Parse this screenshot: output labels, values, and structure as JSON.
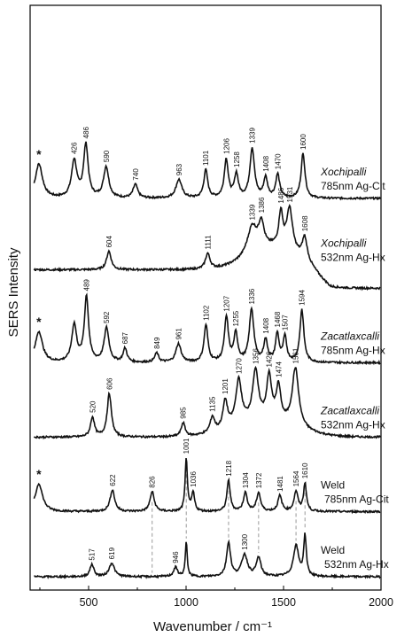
{
  "chart_data": {
    "type": "line",
    "title": "",
    "xlabel": "Wavenumber / cm⁻¹",
    "ylabel": "SERS Intensity",
    "xlim": [
      200,
      2000
    ],
    "xticks": [
      500,
      1000,
      1500,
      2000
    ],
    "y_ticks_shown": false,
    "grid": false,
    "star_marker": "*",
    "series": [
      {
        "key": "xoch_785",
        "name_italic": "Xochipalli",
        "name_rest": "785nm Ag-Cit",
        "offset": 6.2,
        "peaks": [
          {
            "x": 245,
            "h": 0.55,
            "w": 22,
            "label": "",
            "star": true
          },
          {
            "x": 426,
            "h": 0.6,
            "w": 16,
            "label": "426"
          },
          {
            "x": 486,
            "h": 0.85,
            "w": 14,
            "label": "486"
          },
          {
            "x": 590,
            "h": 0.5,
            "w": 16,
            "label": "590"
          },
          {
            "x": 740,
            "h": 0.22,
            "w": 14,
            "label": "740"
          },
          {
            "x": 963,
            "h": 0.3,
            "w": 18,
            "label": "963"
          },
          {
            "x": 1101,
            "h": 0.45,
            "w": 12,
            "label": "1101"
          },
          {
            "x": 1206,
            "h": 0.62,
            "w": 12,
            "label": "1206"
          },
          {
            "x": 1258,
            "h": 0.38,
            "w": 12,
            "label": "1258"
          },
          {
            "x": 1339,
            "h": 0.8,
            "w": 14,
            "label": "1339"
          },
          {
            "x": 1408,
            "h": 0.32,
            "w": 12,
            "label": "1408"
          },
          {
            "x": 1470,
            "h": 0.38,
            "w": 12,
            "label": "1470"
          },
          {
            "x": 1600,
            "h": 0.72,
            "w": 12,
            "label": "1600"
          }
        ]
      },
      {
        "key": "xoch_532",
        "name_italic": "Xochipalli",
        "name_rest": "532nm Ag-Hx",
        "offset": 5.05,
        "peaks": [
          {
            "x": 604,
            "h": 0.3,
            "w": 14,
            "label": "604"
          },
          {
            "x": 1111,
            "h": 0.25,
            "w": 14,
            "label": "1111"
          },
          {
            "x": 1339,
            "h": 0.45,
            "w": 30,
            "label": "1339"
          },
          {
            "x": 1386,
            "h": 0.4,
            "w": 16,
            "label": "1386"
          },
          {
            "x": 1486,
            "h": 0.55,
            "w": 12,
            "label": "1486"
          },
          {
            "x": 1531,
            "h": 0.68,
            "w": 18,
            "label": "1531"
          },
          {
            "x": 1608,
            "h": 0.35,
            "w": 14,
            "label": "1608"
          }
        ]
      },
      {
        "key": "zac_785",
        "name_italic": "Zacatlaxcalli",
        "name_rest": "785nm Ag-Hx",
        "offset": 3.55,
        "peaks": [
          {
            "x": 245,
            "h": 0.5,
            "w": 22,
            "label": "",
            "star": true
          },
          {
            "x": 426,
            "h": 0.6,
            "w": 15,
            "label": ""
          },
          {
            "x": 489,
            "h": 1.05,
            "w": 13,
            "label": "489"
          },
          {
            "x": 592,
            "h": 0.55,
            "w": 15,
            "label": "592"
          },
          {
            "x": 687,
            "h": 0.22,
            "w": 12,
            "label": "687"
          },
          {
            "x": 849,
            "h": 0.15,
            "w": 12,
            "label": "849"
          },
          {
            "x": 961,
            "h": 0.3,
            "w": 16,
            "label": "961"
          },
          {
            "x": 1102,
            "h": 0.6,
            "w": 12,
            "label": "1102"
          },
          {
            "x": 1207,
            "h": 0.72,
            "w": 12,
            "label": "1207"
          },
          {
            "x": 1255,
            "h": 0.45,
            "w": 12,
            "label": "1255"
          },
          {
            "x": 1336,
            "h": 0.85,
            "w": 14,
            "label": "1336"
          },
          {
            "x": 1408,
            "h": 0.35,
            "w": 12,
            "label": "1408"
          },
          {
            "x": 1468,
            "h": 0.45,
            "w": 11,
            "label": "1468"
          },
          {
            "x": 1507,
            "h": 0.4,
            "w": 11,
            "label": "1507"
          },
          {
            "x": 1594,
            "h": 0.85,
            "w": 12,
            "label": "1594"
          }
        ]
      },
      {
        "key": "zac_532",
        "name_italic": "Zacatlaxcalli",
        "name_rest": "532nm Ag-Hx",
        "offset": 2.35,
        "peaks": [
          {
            "x": 520,
            "h": 0.32,
            "w": 12,
            "label": "520"
          },
          {
            "x": 606,
            "h": 0.7,
            "w": 13,
            "label": "606"
          },
          {
            "x": 985,
            "h": 0.22,
            "w": 12,
            "label": "985"
          },
          {
            "x": 1135,
            "h": 0.25,
            "w": 14,
            "label": "1135"
          },
          {
            "x": 1201,
            "h": 0.45,
            "w": 14,
            "label": "1201"
          },
          {
            "x": 1270,
            "h": 0.72,
            "w": 18,
            "label": "1270"
          },
          {
            "x": 1356,
            "h": 0.8,
            "w": 18,
            "label": "1356"
          },
          {
            "x": 1426,
            "h": 0.7,
            "w": 15,
            "label": "1426"
          },
          {
            "x": 1474,
            "h": 0.55,
            "w": 14,
            "label": "1474"
          },
          {
            "x": 1561,
            "h": 0.95,
            "w": 20,
            "label": "1561"
          }
        ]
      },
      {
        "key": "weld_785",
        "name_italic": "",
        "name_rest": "Weld\n785nm Ag-Cit",
        "offset": 1.15,
        "peaks": [
          {
            "x": 245,
            "h": 0.45,
            "w": 22,
            "label": "",
            "star": true
          },
          {
            "x": 622,
            "h": 0.35,
            "w": 14,
            "label": "622"
          },
          {
            "x": 826,
            "h": 0.32,
            "w": 13,
            "label": "826"
          },
          {
            "x": 1001,
            "h": 0.85,
            "w": 7,
            "label": "1001"
          },
          {
            "x": 1036,
            "h": 0.3,
            "w": 9,
            "label": "1036"
          },
          {
            "x": 1218,
            "h": 0.5,
            "w": 10,
            "label": "1218"
          },
          {
            "x": 1304,
            "h": 0.3,
            "w": 12,
            "label": "1304"
          },
          {
            "x": 1372,
            "h": 0.3,
            "w": 12,
            "label": "1372"
          },
          {
            "x": 1481,
            "h": 0.25,
            "w": 12,
            "label": "1481"
          },
          {
            "x": 1564,
            "h": 0.32,
            "w": 12,
            "label": "1564"
          },
          {
            "x": 1610,
            "h": 0.45,
            "w": 9,
            "label": "1610"
          }
        ]
      },
      {
        "key": "weld_532",
        "name_italic": "",
        "name_rest": "Weld\n532nm Ag-Hx",
        "offset": 0.1,
        "peaks": [
          {
            "x": 517,
            "h": 0.2,
            "w": 12,
            "label": "517"
          },
          {
            "x": 619,
            "h": 0.22,
            "w": 16,
            "label": "619"
          },
          {
            "x": 946,
            "h": 0.15,
            "w": 12,
            "label": "946"
          },
          {
            "x": 1001,
            "h": 0.55,
            "w": 6,
            "label": ""
          },
          {
            "x": 1218,
            "h": 0.55,
            "w": 12,
            "label": ""
          },
          {
            "x": 1300,
            "h": 0.35,
            "w": 18,
            "label": "1300"
          },
          {
            "x": 1372,
            "h": 0.3,
            "w": 14,
            "label": ""
          },
          {
            "x": 1564,
            "h": 0.5,
            "w": 16,
            "label": ""
          },
          {
            "x": 1610,
            "h": 0.65,
            "w": 8,
            "label": ""
          }
        ]
      }
    ],
    "correlation_lines": [
      826,
      1001,
      1218,
      1372,
      1564,
      1610
    ]
  }
}
